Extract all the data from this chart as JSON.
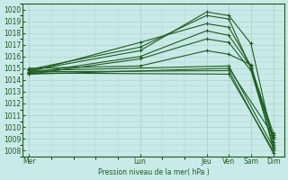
{
  "bg_color": "#c8eae8",
  "grid_color": "#b0d4cc",
  "line_color": "#1e5c1e",
  "ylabel": "Pression niveau de la mer( hPa )",
  "ylim": [
    1007.5,
    1020.5
  ],
  "yticks": [
    1008,
    1009,
    1010,
    1011,
    1012,
    1013,
    1014,
    1015,
    1016,
    1017,
    1018,
    1019,
    1020
  ],
  "xlabels": [
    "Mer",
    "Lun",
    "Jeu",
    "Ven",
    "Sam",
    "Dim"
  ],
  "xpositions": [
    0,
    5,
    8,
    9,
    10,
    11
  ],
  "xlim": [
    -0.3,
    11.5
  ],
  "series": [
    {
      "x": [
        0,
        5,
        8,
        9.0,
        10.0,
        11.0
      ],
      "y": [
        1014.8,
        1016.5,
        1019.8,
        1019.5,
        1017.1,
        1008.7
      ]
    },
    {
      "x": [
        0,
        5,
        8,
        9.0,
        10.0,
        11.0
      ],
      "y": [
        1014.9,
        1016.8,
        1019.5,
        1019.2,
        1015.0,
        1009.0
      ]
    },
    {
      "x": [
        0,
        5,
        8,
        9.0,
        10.0,
        11.0
      ],
      "y": [
        1014.7,
        1017.2,
        1018.8,
        1018.5,
        1015.2,
        1009.2
      ]
    },
    {
      "x": [
        0,
        5,
        8,
        9.0,
        10.0,
        11.0
      ],
      "y": [
        1014.6,
        1016.0,
        1018.2,
        1017.8,
        1015.1,
        1009.5
      ]
    },
    {
      "x": [
        0,
        5,
        8,
        9.0,
        10.0,
        11.0
      ],
      "y": [
        1014.5,
        1015.8,
        1017.5,
        1017.2,
        1014.8,
        1008.5
      ]
    },
    {
      "x": [
        0,
        5,
        8,
        9.0,
        10.0,
        11.0
      ],
      "y": [
        1015.0,
        1015.2,
        1016.5,
        1016.2,
        1015.3,
        1008.2
      ]
    },
    {
      "x": [
        0,
        9.0,
        11.0
      ],
      "y": [
        1014.5,
        1015.0,
        1009.3
      ]
    },
    {
      "x": [
        0,
        9.0,
        11.0
      ],
      "y": [
        1014.8,
        1015.2,
        1008.3
      ]
    },
    {
      "x": [
        0,
        9.0,
        11.0
      ],
      "y": [
        1014.7,
        1014.8,
        1007.8
      ]
    },
    {
      "x": [
        0,
        9.0,
        11.0
      ],
      "y": [
        1014.6,
        1014.5,
        1008.0
      ]
    }
  ]
}
